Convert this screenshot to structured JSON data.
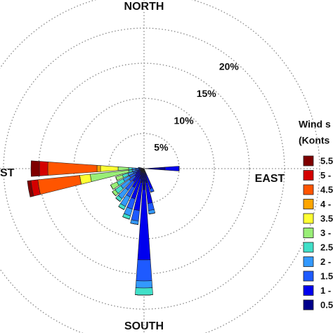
{
  "chart_data": {
    "type": "windrose",
    "compass": {
      "north": "NORTH",
      "south": "SOUTH",
      "east": "EAST",
      "west": "ST"
    },
    "legend_title": [
      "Wind s",
      "(Konts"
    ],
    "directions": [
      90,
      160,
      170,
      180,
      190,
      200,
      210,
      220,
      230,
      240,
      250,
      260,
      270,
      280
    ],
    "sector_width": 8,
    "rlim": [
      0,
      25
    ],
    "rticks": [
      {
        "value": 5,
        "label": "5%"
      },
      {
        "value": 10,
        "label": "10%"
      },
      {
        "value": 15,
        "label": "15%"
      },
      {
        "value": 20,
        "label": "20%"
      }
    ],
    "series": [
      {
        "name": "5.5",
        "color": "#7f0000",
        "values": [
          0,
          0,
          0,
          0,
          0,
          0,
          0,
          0,
          0,
          0,
          0,
          0.5,
          1.2,
          0
        ]
      },
      {
        "name": "5 -",
        "color": "#d40000",
        "values": [
          0,
          0,
          0,
          0,
          0,
          0,
          0,
          0,
          0,
          0,
          0,
          1,
          1.2,
          0
        ]
      },
      {
        "name": "4.5",
        "color": "#ff5500",
        "values": [
          0,
          0,
          0,
          0,
          0,
          0,
          0,
          0,
          0,
          0,
          0,
          6,
          7,
          0
        ]
      },
      {
        "name": "4 -",
        "color": "#ffa500",
        "values": [
          0,
          0,
          0,
          0,
          0,
          0,
          0,
          0,
          0,
          0,
          0,
          0,
          0.5,
          0
        ]
      },
      {
        "name": "3.5",
        "color": "#ffff33",
        "values": [
          0,
          0,
          0,
          0,
          0,
          0,
          0,
          0,
          0,
          0,
          0,
          1.5,
          2.5,
          0
        ]
      },
      {
        "name": "3 -",
        "color": "#99ee77",
        "values": [
          0,
          0,
          0,
          0,
          0,
          0,
          0,
          0,
          0.5,
          1,
          1,
          5.5,
          1.5,
          0
        ]
      },
      {
        "name": "2.5",
        "color": "#40e0c8",
        "values": [
          0,
          0,
          0,
          1,
          0,
          0.5,
          0.5,
          0.5,
          1,
          1,
          0.8,
          0.5,
          0.5,
          0
        ]
      },
      {
        "name": "2 -",
        "color": "#3399ff",
        "values": [
          0,
          0,
          0.5,
          1,
          0.5,
          1,
          1.5,
          1.5,
          1.5,
          1,
          0.8,
          0.5,
          0.5,
          0
        ]
      },
      {
        "name": "1.5",
        "color": "#1e5aff",
        "values": [
          0,
          0.5,
          1,
          3,
          1.5,
          1.5,
          1.5,
          1.5,
          1,
          1,
          0.6,
          0.5,
          0.5,
          0.2
        ]
      },
      {
        "name": "1 -",
        "color": "#0000ee",
        "values": [
          2,
          2,
          3,
          10,
          4,
          3,
          2,
          1.5,
          1,
          0.8,
          0.6,
          0.4,
          0.4,
          0.3
        ]
      },
      {
        "name": "0.5",
        "color": "#00008b",
        "values": [
          3,
          1,
          2,
          3,
          2,
          1.5,
          1,
          0.8,
          0.6,
          0.5,
          0.4,
          0.3,
          0.3,
          0.3
        ]
      }
    ]
  }
}
